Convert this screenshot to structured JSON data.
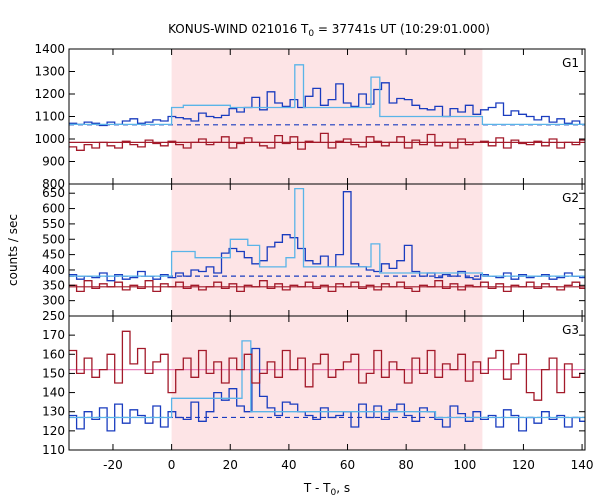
{
  "chart_data": {
    "type": "line",
    "title_prefix": "KONUS-WIND 021016 T",
    "title_sub": "0",
    "title_suffix": " = 37741s UT (10:29:01.000)",
    "xlabel_prefix": "T - T",
    "xlabel_sub": "0",
    "xlabel_suffix": ", s",
    "ylabel": "counts / sec",
    "xlim": [
      -35,
      141
    ],
    "xticks": [
      -20,
      0,
      20,
      40,
      60,
      80,
      100,
      120,
      140
    ],
    "highlight_interval": [
      0,
      106
    ],
    "colors": {
      "raw_blue": "#1a3cbf",
      "fit_cyan": "#5ab4e8",
      "raw_red": "#a31a2a",
      "bg_blue_dashed": "#1a3cbf",
      "bg_pink": "#e87fb8",
      "shade": "#fde4e6"
    },
    "panels": [
      {
        "label": "G1",
        "ylim": [
          800,
          1400
        ],
        "yticks": [
          800,
          900,
          1000,
          1100,
          1200,
          1300,
          1400
        ],
        "background_levels": [
          {
            "name": "blue-dashed",
            "value": 1063,
            "style": "dashed"
          },
          {
            "name": "red-solid",
            "value": 985,
            "style": "solid"
          }
        ],
        "series": [
          {
            "name": "blue",
            "style": "step",
            "x_start": -35,
            "dx": 2.6,
            "values": [
              1070,
              1065,
              1075,
              1070,
              1060,
              1075,
              1065,
              1080,
              1090,
              1070,
              1075,
              1085,
              1080,
              1100,
              1095,
              1090,
              1080,
              1115,
              1100,
              1095,
              1105,
              1135,
              1120,
              1140,
              1185,
              1130,
              1210,
              1160,
              1145,
              1175,
              1140,
              1190,
              1225,
              1150,
              1175,
              1245,
              1160,
              1145,
              1200,
              1155,
              1220,
              1250,
              1160,
              1180,
              1175,
              1150,
              1135,
              1130,
              1145,
              1100,
              1135,
              1120,
              1150,
              1110,
              1130,
              1140,
              1160,
              1105,
              1125,
              1110,
              1100,
              1085,
              1100,
              1075,
              1090,
              1070,
              1080,
              1065,
              1060,
              1065
            ]
          },
          {
            "name": "cyan",
            "style": "step",
            "points": [
              [
                -35,
                1065
              ],
              [
                0,
                1065
              ],
              [
                0,
                1140
              ],
              [
                4,
                1140
              ],
              [
                4,
                1150
              ],
              [
                20,
                1150
              ],
              [
                20,
                1140
              ],
              [
                42,
                1140
              ],
              [
                42,
                1330
              ],
              [
                45,
                1330
              ],
              [
                45,
                1140
              ],
              [
                68,
                1140
              ],
              [
                68,
                1275
              ],
              [
                71,
                1275
              ],
              [
                71,
                1100
              ],
              [
                106,
                1100
              ],
              [
                106,
                1065
              ],
              [
                141,
                1065
              ]
            ]
          },
          {
            "name": "red",
            "style": "step",
            "x_start": -35,
            "dx": 2.6,
            "values": [
              965,
              950,
              975,
              960,
              985,
              970,
              960,
              990,
              975,
              965,
              995,
              980,
              970,
              990,
              975,
              960,
              985,
              1000,
              975,
              985,
              1010,
              960,
              980,
              1005,
              985,
              970,
              960,
              1015,
              980,
              1010,
              955,
              990,
              985,
              1025,
              960,
              990,
              1000,
              975,
              965,
              1010,
              990,
              970,
              985,
              1010,
              960,
              995,
              975,
              1020,
              970,
              985,
              960,
              1000,
              975,
              985,
              990,
              970,
              1005,
              960,
              995,
              980,
              975,
              990,
              970,
              1000,
              960,
              985,
              975,
              995,
              965,
              980
            ]
          }
        ]
      },
      {
        "label": "G2",
        "ylim": [
          250,
          680
        ],
        "yticks": [
          250,
          300,
          350,
          400,
          450,
          500,
          550,
          600,
          650,
          700
        ],
        "yticks_shown": [
          250,
          300,
          350,
          400,
          450,
          500,
          550,
          600,
          650
        ],
        "background_levels": [
          {
            "name": "blue-dashed",
            "value": 380,
            "style": "dashed"
          },
          {
            "name": "red-solid",
            "value": 345,
            "style": "solid"
          }
        ],
        "series": [
          {
            "name": "blue",
            "style": "step",
            "x_start": -35,
            "dx": 2.6,
            "values": [
              385,
              370,
              380,
              375,
              390,
              365,
              385,
              370,
              375,
              395,
              380,
              370,
              385,
              375,
              390,
              380,
              400,
              395,
              410,
              390,
              455,
              470,
              460,
              440,
              420,
              430,
              475,
              490,
              515,
              505,
              470,
              430,
              420,
              445,
              410,
              450,
              655,
              420,
              410,
              400,
              395,
              420,
              405,
              430,
              480,
              395,
              380,
              390,
              375,
              385,
              380,
              395,
              375,
              370,
              385,
              380,
              375,
              390,
              370,
              385,
              375,
              380,
              385,
              370,
              375,
              390,
              380,
              375,
              385,
              370
            ]
          },
          {
            "name": "cyan",
            "style": "step",
            "points": [
              [
                -35,
                380
              ],
              [
                0,
                380
              ],
              [
                0,
                460
              ],
              [
                8,
                460
              ],
              [
                8,
                440
              ],
              [
                20,
                440
              ],
              [
                20,
                500
              ],
              [
                26,
                500
              ],
              [
                26,
                480
              ],
              [
                30,
                480
              ],
              [
                30,
                410
              ],
              [
                39,
                410
              ],
              [
                39,
                440
              ],
              [
                42,
                440
              ],
              [
                42,
                665
              ],
              [
                45,
                665
              ],
              [
                45,
                410
              ],
              [
                68,
                410
              ],
              [
                68,
                485
              ],
              [
                71,
                485
              ],
              [
                71,
                390
              ],
              [
                106,
                390
              ],
              [
                106,
                380
              ],
              [
                141,
                380
              ]
            ]
          },
          {
            "name": "red",
            "style": "step",
            "x_start": -35,
            "dx": 2.6,
            "values": [
              350,
              330,
              365,
              340,
              355,
              345,
              360,
              335,
              350,
              340,
              365,
              330,
              355,
              345,
              360,
              340,
              350,
              335,
              345,
              360,
              340,
              355,
              330,
              350,
              345,
              365,
              340,
              355,
              335,
              350,
              345,
              360,
              340,
              350,
              330,
              355,
              345,
              360,
              340,
              350,
              335,
              355,
              345,
              360,
              340,
              330,
              350,
              345,
              365,
              340,
              355,
              335,
              350,
              345,
              360,
              340,
              355,
              330,
              350,
              345,
              360,
              340,
              355,
              345,
              335,
              350,
              360,
              340,
              355,
              345
            ]
          }
        ]
      },
      {
        "label": "G3",
        "ylim": [
          110,
          180
        ],
        "yticks": [
          110,
          120,
          130,
          140,
          150,
          160,
          170
        ],
        "background_levels": [
          {
            "name": "blue-dashed",
            "value": 127,
            "style": "dashed"
          },
          {
            "name": "pink-solid",
            "value": 152,
            "style": "solid"
          }
        ],
        "series": [
          {
            "name": "blue",
            "style": "step",
            "x_start": -35,
            "dx": 2.6,
            "values": [
              128,
              121,
              130,
              126,
              132,
              120,
              134,
              124,
              131,
              128,
              124,
              133,
              122,
              130,
              127,
              126,
              135,
              125,
              130,
              140,
              136,
              142,
              133,
              130,
              163,
              138,
              132,
              128,
              135,
              134,
              130,
              128,
              126,
              132,
              127,
              128,
              130,
              122,
              134,
              127,
              133,
              126,
              131,
              134,
              128,
              125,
              132,
              130,
              126,
              122,
              133,
              129,
              125,
              130,
              126,
              128,
              122,
              131,
              128,
              120,
              127,
              124,
              130,
              126,
              128,
              122,
              127,
              125,
              120,
              118
            ]
          },
          {
            "name": "cyan",
            "style": "step",
            "points": [
              [
                -35,
                127
              ],
              [
                0,
                127
              ],
              [
                0,
                137
              ],
              [
                24,
                137
              ],
              [
                24,
                167
              ],
              [
                27,
                167
              ],
              [
                27,
                130
              ],
              [
                90,
                130
              ],
              [
                90,
                127
              ],
              [
                141,
                127
              ]
            ]
          },
          {
            "name": "red",
            "style": "step",
            "x_start": -35,
            "dx": 2.6,
            "values": [
              162,
              150,
              158,
              148,
              152,
              160,
              145,
              172,
              155,
              163,
              150,
              156,
              160,
              140,
              152,
              158,
              148,
              162,
              150,
              156,
              145,
              158,
              152,
              160,
              145,
              150,
              156,
              148,
              162,
              152,
              158,
              143,
              155,
              160,
              148,
              152,
              156,
              160,
              145,
              150,
              162,
              148,
              156,
              152,
              145,
              158,
              150,
              162,
              148,
              155,
              152,
              160,
              146,
              156,
              150,
              158,
              162,
              147,
              155,
              160,
              140,
              136,
              152,
              158,
              140,
              155,
              148,
              150,
              148,
              152
            ]
          }
        ]
      }
    ]
  }
}
